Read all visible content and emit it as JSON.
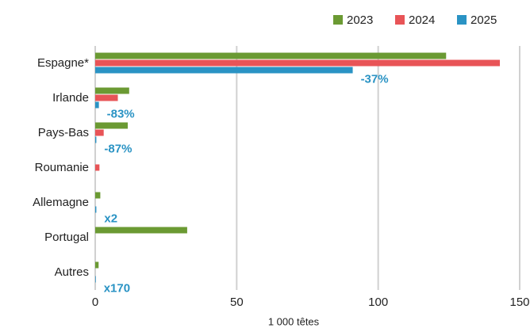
{
  "chart_data": {
    "type": "bar",
    "orientation": "horizontal",
    "categories": [
      "Espagne*",
      "Irlande",
      "Pays-Bas",
      "Roumanie",
      "Allemagne",
      "Portugal",
      "Autres"
    ],
    "series": [
      {
        "name": "2023",
        "color": "#6b9a33",
        "values": [
          124,
          12,
          11.5,
          0,
          1.8,
          32.5,
          1.2
        ]
      },
      {
        "name": "2024",
        "color": "#e85457",
        "values": [
          143,
          8,
          3,
          1.5,
          0,
          0,
          0
        ]
      },
      {
        "name": "2025",
        "color": "#2a93c4",
        "values": [
          91,
          1.3,
          0.4,
          0,
          0.4,
          0,
          0.2
        ]
      }
    ],
    "annotations": [
      {
        "category": "Espagne*",
        "text": "-37%"
      },
      {
        "category": "Irlande",
        "text": "-83%"
      },
      {
        "category": "Pays-Bas",
        "text": "-87%"
      },
      {
        "category": "Allemagne",
        "text": "x2"
      },
      {
        "category": "Autres",
        "text": "x170"
      }
    ],
    "xlabel": "1 000 têtes",
    "xlim": [
      0,
      150
    ],
    "xticks": [
      0,
      50,
      100,
      150
    ],
    "grid": true,
    "legend": "top-right"
  }
}
